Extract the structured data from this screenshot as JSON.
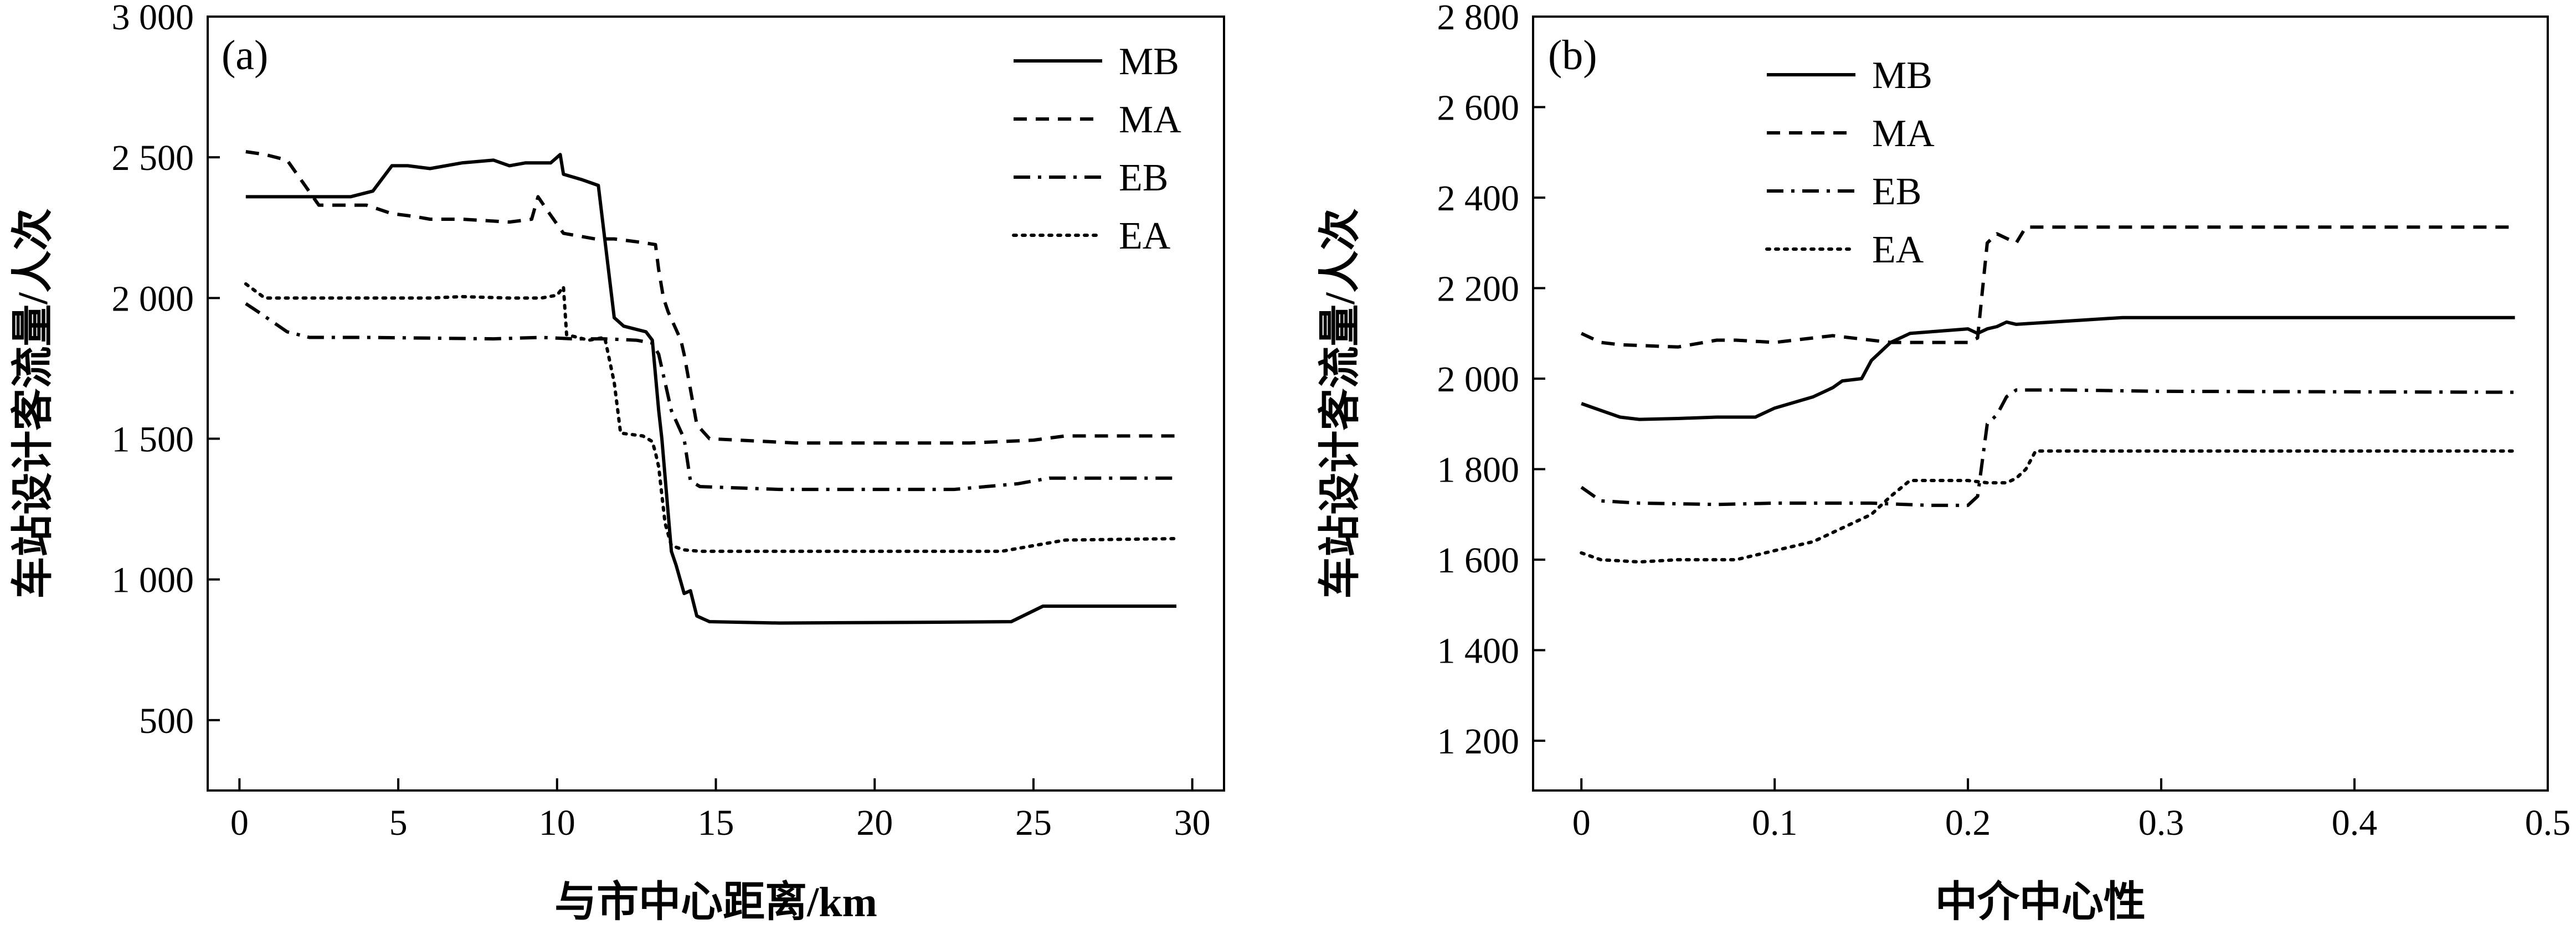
{
  "chart_data": [
    {
      "type": "line",
      "panel_label": "(a)",
      "xlabel": "与市中心距离/km",
      "ylabel": "车站设计客流量/人次",
      "xlim": [
        -1,
        31
      ],
      "ylim": [
        250,
        3000
      ],
      "xticks": [
        0,
        5,
        10,
        15,
        20,
        25,
        30
      ],
      "xtick_labels": [
        "0",
        "5",
        "10",
        "15",
        "20",
        "25",
        "30"
      ],
      "yticks": [
        500,
        1000,
        1500,
        2000,
        2500,
        3000
      ],
      "ytick_labels": [
        "500",
        "1 000",
        "1 500",
        "2 000",
        "2 500",
        "3 000"
      ],
      "legend_position": "top-right",
      "series": [
        {
          "name": "MB",
          "style": "solid",
          "x": [
            0.2,
            3.5,
            4.2,
            4.8,
            5.3,
            6.0,
            7.0,
            8.0,
            8.5,
            9.0,
            9.8,
            10.1,
            10.2,
            10.8,
            11.3,
            11.8,
            12.1,
            12.8,
            13.0,
            13.2,
            13.3,
            13.45,
            13.6,
            13.75,
            14.0,
            14.2,
            14.4,
            14.8,
            17.0,
            22.0,
            24.3,
            25.3,
            29.5
          ],
          "y": [
            2360,
            2360,
            2380,
            2470,
            2470,
            2460,
            2480,
            2490,
            2470,
            2480,
            2480,
            2510,
            2440,
            2420,
            2400,
            1930,
            1900,
            1880,
            1850,
            1600,
            1500,
            1300,
            1100,
            1050,
            950,
            960,
            870,
            850,
            845,
            848,
            850,
            905,
            905
          ]
        },
        {
          "name": "MA",
          "style": "dashed",
          "x": [
            0.2,
            0.8,
            1.5,
            2.0,
            2.5,
            4.0,
            4.8,
            5.5,
            6.0,
            7.0,
            8.5,
            9.2,
            9.4,
            9.7,
            10.2,
            10.7,
            11.2,
            11.8,
            12.5,
            13.1,
            13.2,
            13.35,
            13.5,
            13.7,
            13.9,
            14.0,
            14.4,
            14.8,
            17.5,
            23.0,
            25.0,
            26.0,
            29.5
          ],
          "y": [
            2520,
            2510,
            2490,
            2410,
            2330,
            2330,
            2300,
            2290,
            2280,
            2280,
            2270,
            2280,
            2360,
            2310,
            2230,
            2220,
            2210,
            2210,
            2200,
            2190,
            2100,
            2000,
            1950,
            1900,
            1850,
            1800,
            1550,
            1500,
            1485,
            1485,
            1495,
            1510,
            1510
          ]
        },
        {
          "name": "EB",
          "style": "dashdot",
          "x": [
            0.2,
            0.6,
            1.5,
            2.2,
            4.0,
            8.0,
            9.5,
            10.5,
            11.5,
            12.5,
            13.0,
            13.2,
            13.4,
            13.6,
            13.8,
            14.0,
            14.2,
            14.5,
            17.0,
            22.5,
            24.5,
            25.5,
            29.5
          ],
          "y": [
            1980,
            1950,
            1880,
            1860,
            1860,
            1855,
            1860,
            1855,
            1855,
            1850,
            1840,
            1800,
            1700,
            1600,
            1550,
            1500,
            1350,
            1330,
            1320,
            1320,
            1340,
            1360,
            1360
          ]
        },
        {
          "name": "EA",
          "style": "dotted",
          "x": [
            0.2,
            0.8,
            2.0,
            6.0,
            7.0,
            8.5,
            9.5,
            10.0,
            10.2,
            10.3,
            11.0,
            11.5,
            11.8,
            12.0,
            12.7,
            13.0,
            13.1,
            13.2,
            13.3,
            13.4,
            13.6,
            14.0,
            14.5,
            18.0,
            24.0,
            25.0,
            26.0,
            29.5
          ],
          "y": [
            2050,
            2000,
            2000,
            2000,
            2005,
            2000,
            2000,
            2010,
            2040,
            1870,
            1850,
            1860,
            1700,
            1520,
            1510,
            1490,
            1450,
            1400,
            1300,
            1200,
            1120,
            1105,
            1100,
            1100,
            1100,
            1120,
            1140,
            1145
          ]
        }
      ]
    },
    {
      "type": "line",
      "panel_label": "(b)",
      "xlabel": "中介中心性",
      "ylabel": "车站设计客流量/人次",
      "xlim": [
        -0.025,
        0.5
      ],
      "ylim": [
        1090,
        2800
      ],
      "xticks": [
        0,
        0.1,
        0.2,
        0.3,
        0.4,
        0.5
      ],
      "xtick_labels": [
        "0",
        "0.1",
        "0.2",
        "0.3",
        "0.4",
        "0.5"
      ],
      "yticks": [
        1200,
        1400,
        1600,
        1800,
        2000,
        2200,
        2400,
        2600,
        2800
      ],
      "ytick_labels": [
        "1 200",
        "1 400",
        "1 600",
        "1 800",
        "2 000",
        "2 200",
        "2 400",
        "2 600",
        "2 800"
      ],
      "legend_position": "top-left",
      "series": [
        {
          "name": "MB",
          "style": "solid",
          "x": [
            0,
            0.01,
            0.02,
            0.03,
            0.05,
            0.07,
            0.09,
            0.1,
            0.12,
            0.13,
            0.135,
            0.145,
            0.15,
            0.16,
            0.17,
            0.2,
            0.205,
            0.21,
            0.215,
            0.22,
            0.225,
            0.28,
            0.35,
            0.483
          ],
          "y": [
            1945,
            1930,
            1915,
            1910,
            1912,
            1915,
            1915,
            1935,
            1960,
            1980,
            1995,
            2000,
            2040,
            2080,
            2100,
            2110,
            2100,
            2110,
            2115,
            2125,
            2120,
            2135,
            2135,
            2135
          ]
        },
        {
          "name": "MA",
          "style": "dashed",
          "x": [
            0,
            0.01,
            0.02,
            0.05,
            0.07,
            0.08,
            0.1,
            0.13,
            0.16,
            0.2,
            0.205,
            0.21,
            0.215,
            0.22,
            0.225,
            0.23,
            0.3,
            0.483
          ],
          "y": [
            2100,
            2080,
            2075,
            2070,
            2085,
            2085,
            2080,
            2095,
            2080,
            2080,
            2090,
            2300,
            2320,
            2310,
            2300,
            2335,
            2335,
            2335
          ]
        },
        {
          "name": "EB",
          "style": "dashdot",
          "x": [
            0,
            0.01,
            0.03,
            0.07,
            0.1,
            0.15,
            0.18,
            0.2,
            0.205,
            0.21,
            0.215,
            0.22,
            0.225,
            0.25,
            0.3,
            0.483
          ],
          "y": [
            1760,
            1730,
            1725,
            1722,
            1725,
            1725,
            1720,
            1720,
            1740,
            1900,
            1920,
            1960,
            1975,
            1975,
            1972,
            1970
          ]
        },
        {
          "name": "EA",
          "style": "dotted",
          "x": [
            0,
            0.01,
            0.03,
            0.05,
            0.08,
            0.09,
            0.11,
            0.12,
            0.13,
            0.14,
            0.15,
            0.16,
            0.17,
            0.2,
            0.21,
            0.22,
            0.225,
            0.23,
            0.235,
            0.3,
            0.483
          ],
          "y": [
            1615,
            1600,
            1595,
            1600,
            1600,
            1610,
            1630,
            1640,
            1660,
            1680,
            1700,
            1740,
            1775,
            1775,
            1770,
            1770,
            1780,
            1800,
            1840,
            1840,
            1840
          ]
        }
      ]
    }
  ]
}
